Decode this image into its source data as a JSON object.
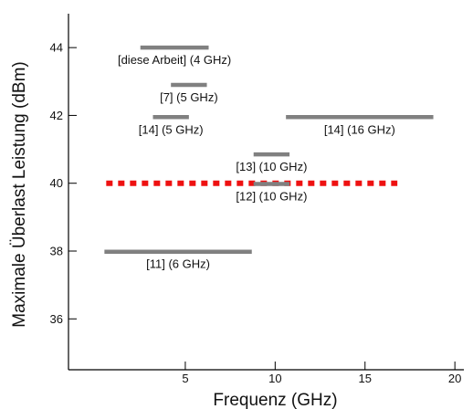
{
  "chart_data": {
    "type": "range-bars",
    "title": "",
    "xlabel": "Frequenz (GHz)",
    "ylabel": "Maximale Überlast Leistung (dBm)",
    "xlim": [
      -1.5,
      20.5
    ],
    "ylim": [
      34.5,
      45
    ],
    "x_ticks": [
      5,
      10,
      15,
      20
    ],
    "y_ticks": [
      36,
      38,
      40,
      42,
      44
    ],
    "bar_color": "#808080",
    "reference_color": "#ee1111",
    "ranges": [
      {
        "x0": 2.5,
        "x1": 6.3,
        "y": 44.0,
        "label": "[diese Arbeit]  (4 GHz)"
      },
      {
        "x0": 4.2,
        "x1": 6.2,
        "y": 42.9,
        "label": "[7]  (5 GHz)"
      },
      {
        "x0": 3.2,
        "x1": 5.2,
        "y": 41.95,
        "label": "[14]  (5 GHz)"
      },
      {
        "x0": 10.6,
        "x1": 18.8,
        "y": 41.95,
        "label": "[14]  (16 GHz)"
      },
      {
        "x0": 8.8,
        "x1": 10.8,
        "y": 40.85,
        "label": "[13]  (10 GHz)"
      },
      {
        "x0": 8.8,
        "x1": 10.8,
        "y": 39.98,
        "label": "[12]  (10 GHz)"
      },
      {
        "x0": 0.5,
        "x1": 8.7,
        "y": 37.98,
        "label": "[11]  (6 GHz)"
      }
    ],
    "reference_line": {
      "x0": 0.6,
      "x1": 16.8,
      "y": 40.0,
      "style": "dotted"
    }
  }
}
